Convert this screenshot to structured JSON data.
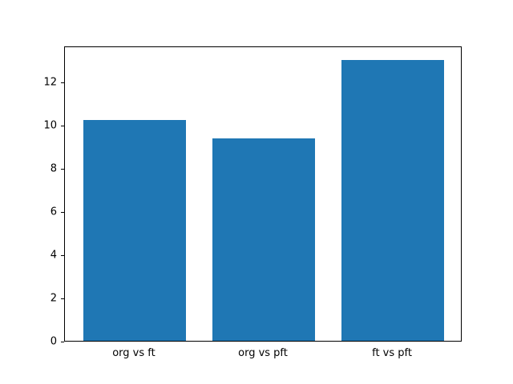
{
  "chart_data": {
    "type": "bar",
    "categories": [
      "org vs ft",
      "org vs pft",
      "ft vs pft"
    ],
    "values": [
      10.2,
      9.35,
      13.0
    ],
    "title": "",
    "xlabel": "",
    "ylabel": "",
    "ylim": [
      0,
      13.65
    ],
    "yticks": [
      0,
      2,
      4,
      6,
      8,
      10,
      12
    ],
    "bar_color": "#1f77b4",
    "bar_width_fraction": 0.8,
    "x_margin_fraction": 0.54,
    "grid": false,
    "legend_position": "none",
    "background_color": "#ffffff",
    "axis_color": "#000000"
  }
}
